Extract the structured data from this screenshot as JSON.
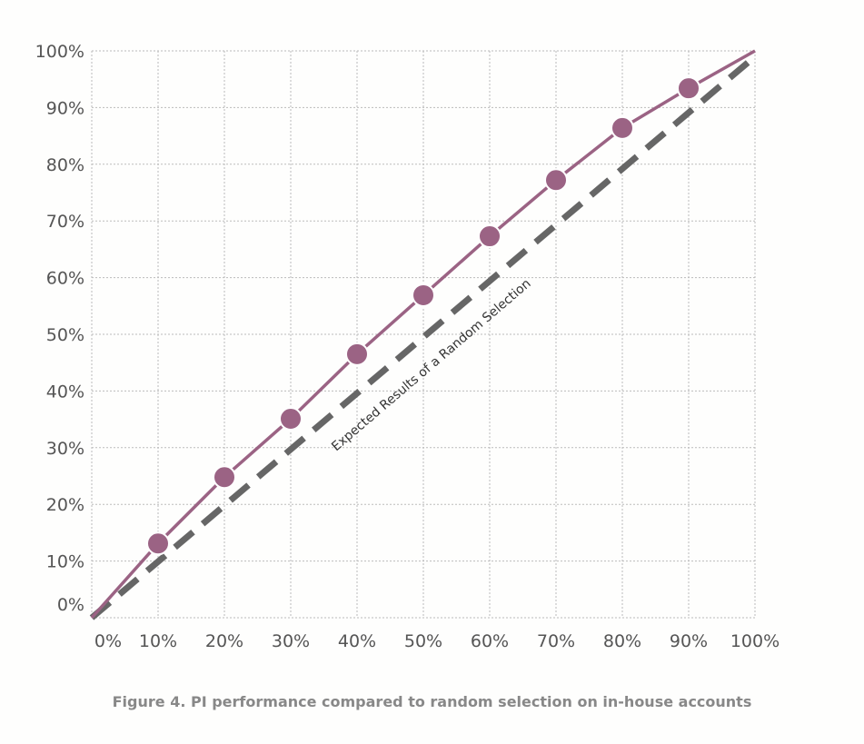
{
  "chart_data": {
    "type": "line",
    "title": "",
    "caption": "Figure 4. PI performance compared to random selection on in-house accounts",
    "xlabel": "",
    "ylabel": "",
    "xlim": [
      0,
      100
    ],
    "ylim": [
      0,
      100
    ],
    "grid": true,
    "x_ticks": [
      "0%",
      "10%",
      "20%",
      "30%",
      "40%",
      "50%",
      "60%",
      "70%",
      "80%",
      "90%",
      "100%"
    ],
    "y_ticks": [
      "0%",
      "10%",
      "20%",
      "30%",
      "40%",
      "50%",
      "60%",
      "70%",
      "80%",
      "90%",
      "100%"
    ],
    "series": [
      {
        "name": "PI performance",
        "color": "#9b6384",
        "style": "solid-markers",
        "x": [
          0,
          10,
          20,
          30,
          40,
          50,
          60,
          70,
          80,
          90,
          100
        ],
        "y": [
          0,
          13.1,
          24.8,
          35.1,
          46.5,
          56.9,
          67.3,
          77.2,
          86.4,
          93.4,
          100
        ],
        "markers": [
          false,
          true,
          true,
          true,
          true,
          true,
          true,
          true,
          true,
          true,
          false
        ]
      },
      {
        "name": "Expected Results of a Random Selection",
        "color": "#666666",
        "style": "dashed",
        "x": [
          0,
          100
        ],
        "y": [
          0,
          99
        ]
      }
    ],
    "annotation": "Expected Results of a Random Selection"
  }
}
